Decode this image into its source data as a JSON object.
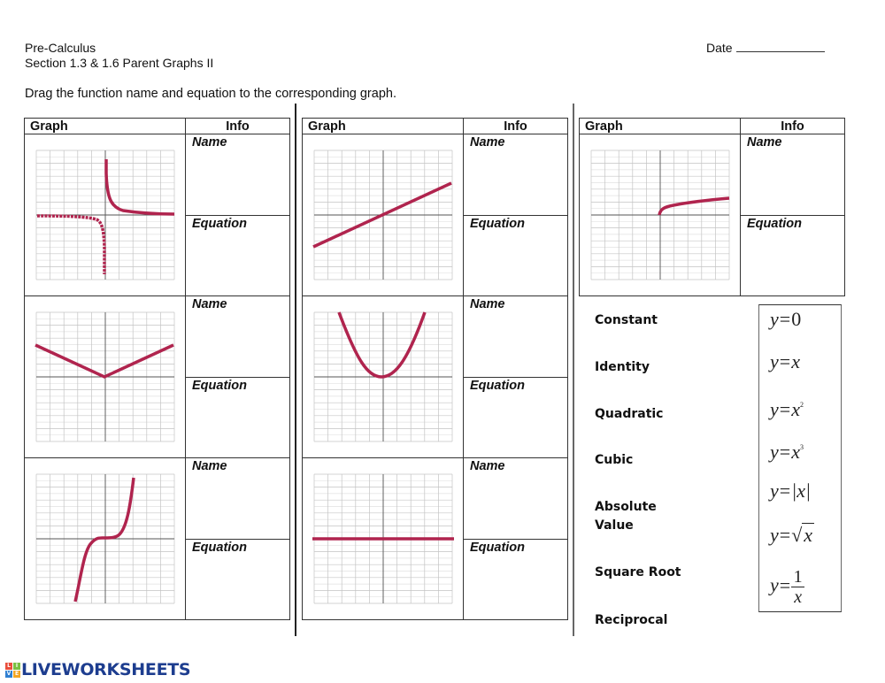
{
  "header": {
    "course": "Pre-Calculus",
    "section": "Section 1.3 & 1.6 Parent Graphs II",
    "date_label": "Date",
    "instructions": "Drag the function name and equation to the corresponding graph."
  },
  "tables": [
    {
      "col_graph": "Graph",
      "col_info": "Info",
      "rows": [
        {
          "graph": "reciprocal",
          "name_label": "Name",
          "equation_label": "Equation"
        },
        {
          "graph": "absolute-value",
          "name_label": "Name",
          "equation_label": "Equation"
        },
        {
          "graph": "cubic",
          "name_label": "Name",
          "equation_label": "Equation"
        }
      ]
    },
    {
      "col_graph": "Graph",
      "col_info": "Info",
      "rows": [
        {
          "graph": "identity",
          "name_label": "Name",
          "equation_label": "Equation"
        },
        {
          "graph": "quadratic",
          "name_label": "Name",
          "equation_label": "Equation"
        },
        {
          "graph": "constant",
          "name_label": "Name",
          "equation_label": "Equation"
        }
      ]
    },
    {
      "col_graph": "Graph",
      "col_info": "Info",
      "rows": [
        {
          "graph": "square-root",
          "name_label": "Name",
          "equation_label": "Equation"
        }
      ]
    }
  ],
  "word_bank": {
    "names": [
      "Constant",
      "Identity",
      "Quadratic",
      "Cubic",
      "Absolute Value",
      "Square Root",
      "Reciprocal"
    ],
    "names_split": {
      "absolute_1": "Absolute",
      "absolute_2": "Value"
    },
    "equations": [
      {
        "lhs": "y",
        "op": "=",
        "rhs": "0"
      },
      {
        "lhs": "y",
        "op": "=",
        "rhs": "x"
      },
      {
        "lhs": "y",
        "op": "=",
        "rhs": "x",
        "exp": "2"
      },
      {
        "lhs": "y",
        "op": "=",
        "rhs": "x",
        "exp": "3"
      },
      {
        "lhs": "y",
        "op": "=",
        "rhs": "|x|"
      },
      {
        "lhs": "y",
        "op": "=",
        "rad": "√",
        "rhs": "x"
      },
      {
        "lhs": "y",
        "op": "=",
        "num": "1",
        "den": "x"
      }
    ]
  },
  "colors": {
    "curve": "#b0244e",
    "grid": "#c8c8c8",
    "axis": "#555555",
    "logo_blue": "#1d3d8f",
    "logo_cube": [
      "#e94e3c",
      "#7ac043",
      "#2f7fd1",
      "#f4a623"
    ]
  },
  "logo": {
    "cube": [
      "L",
      "I",
      "V",
      "E"
    ],
    "text": "LIVEWORKSHEETS"
  }
}
